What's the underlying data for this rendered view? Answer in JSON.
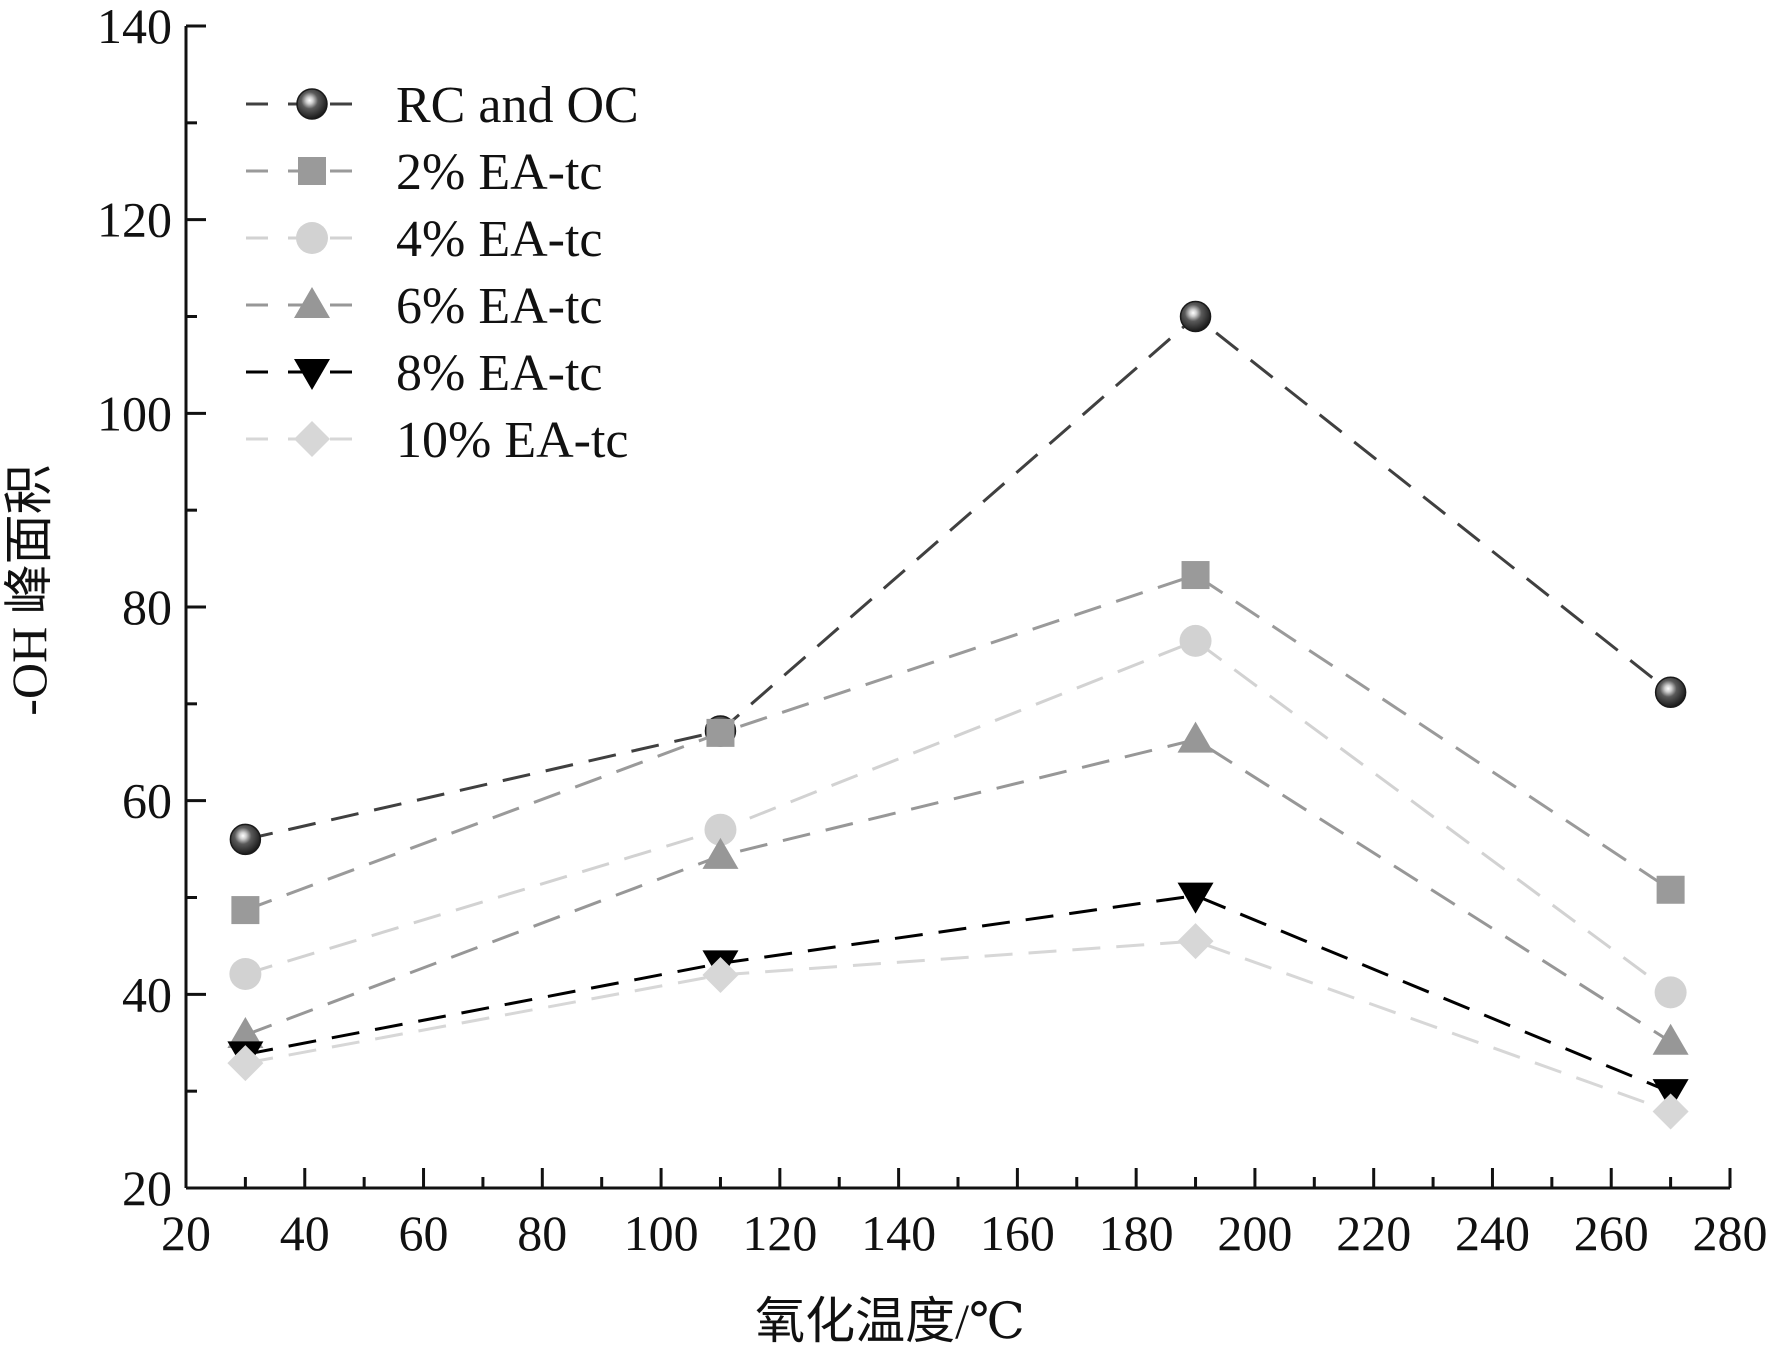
{
  "chart_data": {
    "type": "line",
    "xlabel": "氧化温度/℃",
    "ylabel": "-OH 峰面积",
    "xlim": [
      20,
      280
    ],
    "ylim": [
      20,
      140
    ],
    "x_ticks": [
      "20",
      "40",
      "60",
      "80",
      "100",
      "120",
      "140",
      "160",
      "180",
      "200",
      "220",
      "240",
      "260",
      "280"
    ],
    "y_ticks": [
      "20",
      "40",
      "60",
      "80",
      "100",
      "120",
      "140"
    ],
    "grid": false,
    "legend_position": "top-left",
    "x": [
      30,
      110,
      190,
      270
    ],
    "series": [
      {
        "name": "RC and OC",
        "values": [
          56,
          67.2,
          110,
          71.2
        ],
        "color": "#404040",
        "marker": "sphere"
      },
      {
        "name": "2% EA-tc",
        "values": [
          48.7,
          67,
          83.3,
          50.8
        ],
        "color": "#9a9a9a",
        "marker": "square"
      },
      {
        "name": "4% EA-tc",
        "values": [
          42.1,
          57,
          76.5,
          40.2
        ],
        "color": "#d2d2d2",
        "marker": "circle"
      },
      {
        "name": "6% EA-tc",
        "values": [
          35.8,
          54.3,
          66.3,
          35.1
        ],
        "color": "#979797",
        "marker": "triangle-up"
      },
      {
        "name": "8% EA-tc",
        "values": [
          33.8,
          43.2,
          50.2,
          29.9
        ],
        "color": "#000000",
        "marker": "triangle-down"
      },
      {
        "name": "10% EA-tc",
        "values": [
          32.9,
          42,
          45.5,
          27.9
        ],
        "color": "#d7d7d7",
        "marker": "diamond"
      }
    ]
  }
}
